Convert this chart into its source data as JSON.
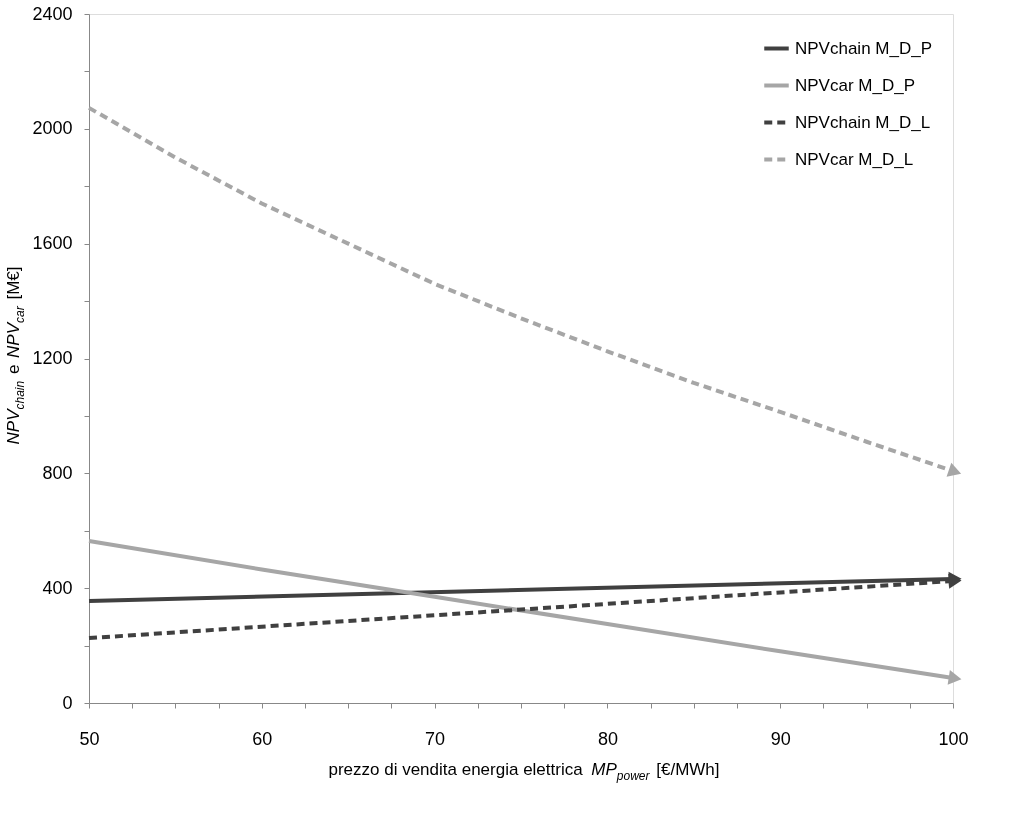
{
  "chart_data": {
    "type": "line",
    "xlabel": "prezzo di vendita energia elettrica MP$_{power}$ [€/MWh]",
    "ylabel": "NPV$_{chain}$ e NPV$_{car}$ [M€]",
    "xlim": [
      50,
      100
    ],
    "ylim": [
      0,
      2400
    ],
    "xticks": [
      50,
      {
        "value": 52.5,
        "label": null
      },
      {
        "value": 55,
        "label": null
      },
      {
        "value": 57.5,
        "label": null
      },
      60,
      {
        "value": 62.5,
        "label": null
      },
      {
        "value": 65,
        "label": null
      },
      {
        "value": 67.5,
        "label": null
      },
      70,
      {
        "value": 72.5,
        "label": null
      },
      {
        "value": 75,
        "label": null
      },
      {
        "value": 77.5,
        "label": null
      },
      80,
      {
        "value": 82.5,
        "label": null
      },
      {
        "value": 85,
        "label": null
      },
      {
        "value": 87.5,
        "label": null
      },
      90,
      {
        "value": 92.5,
        "label": null
      },
      {
        "value": 95,
        "label": null
      },
      {
        "value": 97.5,
        "label": null
      },
      100
    ],
    "yticks": [
      0,
      {
        "value": 200,
        "label": null
      },
      400,
      {
        "value": 600,
        "label": null
      },
      800,
      {
        "value": 1000,
        "label": null
      },
      1200,
      {
        "value": 1400,
        "label": null
      },
      1600,
      {
        "value": 1800,
        "label": null
      },
      2000,
      {
        "value": 2200,
        "label": null
      },
      2400
    ],
    "grid": false,
    "legend": "top right",
    "series": [
      {
        "name": "NPVchain M_D_P",
        "color": "#404040",
        "line_style": "solid",
        "x": [
          50,
          100
        ],
        "values": [
          355,
          432
        ]
      },
      {
        "name": "NPVcar M_D_P",
        "color": "#a6a6a6",
        "line_style": "solid",
        "x": [
          50,
          60,
          70,
          80,
          90,
          100
        ],
        "values": [
          564,
          465,
          370,
          275,
          180,
          87
        ]
      },
      {
        "name": "NPVchain M_D_L",
        "color": "#404040",
        "line_style": "dashed",
        "x": [
          50,
          100
        ],
        "values": [
          226,
          425
        ]
      },
      {
        "name": "NPVcar M_D_L",
        "color": "#a6a6a6",
        "line_style": "dashed",
        "x": [
          50,
          55,
          60,
          65,
          70,
          75,
          80,
          85,
          90,
          95,
          100
        ],
        "values": [
          2073,
          1900,
          1740,
          1600,
          1460,
          1340,
          1225,
          1115,
          1014,
          910,
          808
        ]
      }
    ]
  }
}
